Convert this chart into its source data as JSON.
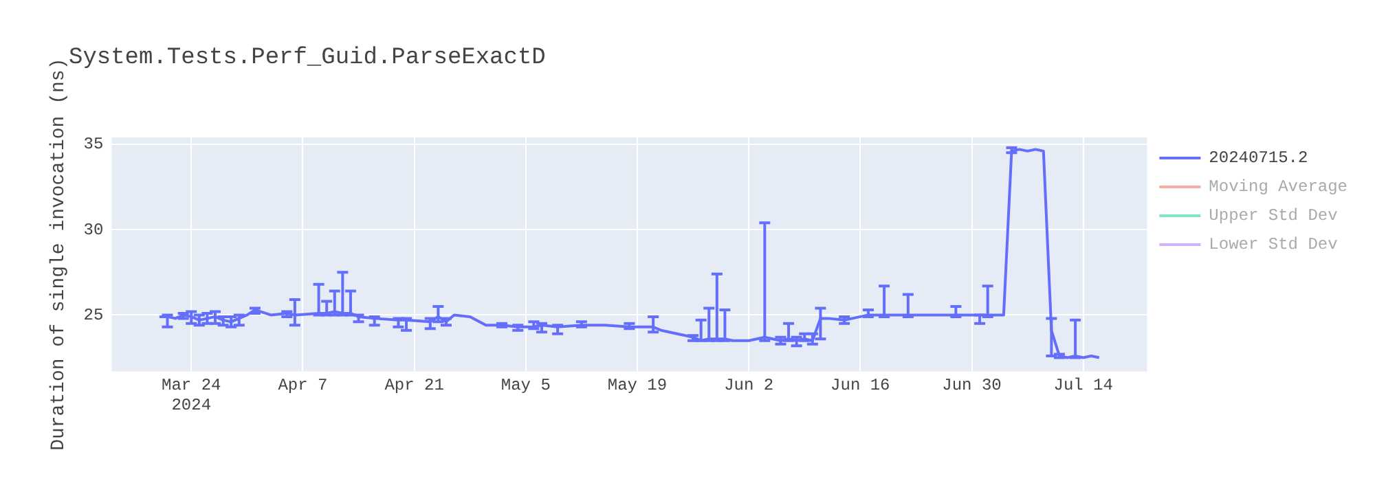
{
  "chart_data": {
    "type": "line",
    "title": "System.Tests.Perf_Guid.ParseExactD",
    "ylabel": "Duration of single invocation (ns)",
    "x": [
      "2024-03-20",
      "2024-03-21",
      "2024-03-22",
      "2024-03-23",
      "2024-03-24",
      "2024-03-25",
      "2024-03-26",
      "2024-03-27",
      "2024-03-28",
      "2024-03-29",
      "2024-03-30",
      "2024-03-31",
      "2024-04-01",
      "2024-04-03",
      "2024-04-05",
      "2024-04-06",
      "2024-04-09",
      "2024-04-10",
      "2024-04-11",
      "2024-04-12",
      "2024-04-13",
      "2024-04-14",
      "2024-04-16",
      "2024-04-19",
      "2024-04-20",
      "2024-04-23",
      "2024-04-24",
      "2024-04-25",
      "2024-04-26",
      "2024-04-28",
      "2024-04-30",
      "2024-05-02",
      "2024-05-04",
      "2024-05-06",
      "2024-05-07",
      "2024-05-09",
      "2024-05-12",
      "2024-05-15",
      "2024-05-18",
      "2024-05-21",
      "2024-05-22",
      "2024-05-24",
      "2024-05-26",
      "2024-05-27",
      "2024-05-28",
      "2024-05-29",
      "2024-05-30",
      "2024-05-31",
      "2024-06-02",
      "2024-06-03",
      "2024-06-04",
      "2024-06-05",
      "2024-06-06",
      "2024-06-07",
      "2024-06-08",
      "2024-06-09",
      "2024-06-10",
      "2024-06-11",
      "2024-06-12",
      "2024-06-14",
      "2024-06-16",
      "2024-06-17",
      "2024-06-18",
      "2024-06-19",
      "2024-06-21",
      "2024-06-22",
      "2024-06-25",
      "2024-06-26",
      "2024-06-28",
      "2024-06-30",
      "2024-07-01",
      "2024-07-02",
      "2024-07-03",
      "2024-07-04",
      "2024-07-05",
      "2024-07-06",
      "2024-07-07",
      "2024-07-08",
      "2024-07-09",
      "2024-07-10",
      "2024-07-11",
      "2024-07-12",
      "2024-07-13",
      "2024-07-14",
      "2024-07-15",
      "2024-07-16"
    ],
    "series": [
      {
        "name": "20240715.2",
        "color": "#636efa",
        "values": [
          24.9,
          24.9,
          24.8,
          25.0,
          24.9,
          24.7,
          24.8,
          24.9,
          24.7,
          24.6,
          24.8,
          25.0,
          25.3,
          25.0,
          25.1,
          25.0,
          25.1,
          25.1,
          25.2,
          25.1,
          25.1,
          24.9,
          24.8,
          24.7,
          24.7,
          24.6,
          24.9,
          24.6,
          25.0,
          24.9,
          24.4,
          24.4,
          24.3,
          24.3,
          24.4,
          24.3,
          24.4,
          24.4,
          24.3,
          24.3,
          24.1,
          23.9,
          23.7,
          23.5,
          23.6,
          23.6,
          23.6,
          23.5,
          23.5,
          23.6,
          23.7,
          23.6,
          23.5,
          23.6,
          23.5,
          23.6,
          23.5,
          24.8,
          24.8,
          24.7,
          24.9,
          25.0,
          25.0,
          25.0,
          25.0,
          25.0,
          25.0,
          25.0,
          25.0,
          25.0,
          25.0,
          25.0,
          25.0,
          25.0,
          34.6,
          34.7,
          34.6,
          34.7,
          34.6,
          24.1,
          22.6,
          22.5,
          22.6,
          22.5,
          22.6,
          22.5
        ],
        "errors": [
          null,
          [
            24.3,
            25.0
          ],
          null,
          [
            24.8,
            25.1
          ],
          [
            24.5,
            25.2
          ],
          [
            24.4,
            25.0
          ],
          [
            24.5,
            25.1
          ],
          [
            24.5,
            25.2
          ],
          [
            24.4,
            24.9
          ],
          [
            24.3,
            24.9
          ],
          [
            24.4,
            25.0
          ],
          null,
          [
            25.1,
            25.4
          ],
          null,
          [
            24.9,
            25.2
          ],
          [
            24.4,
            25.9
          ],
          [
            25.0,
            26.8
          ],
          [
            25.0,
            25.8
          ],
          [
            25.0,
            26.4
          ],
          [
            25.0,
            27.5
          ],
          [
            25.0,
            26.4
          ],
          [
            24.6,
            25.0
          ],
          [
            24.4,
            24.9
          ],
          [
            24.3,
            24.8
          ],
          [
            24.1,
            24.8
          ],
          [
            24.2,
            24.8
          ],
          [
            24.6,
            25.5
          ],
          [
            24.4,
            24.8
          ],
          null,
          null,
          null,
          [
            24.3,
            24.5
          ],
          [
            24.1,
            24.4
          ],
          [
            24.2,
            24.6
          ],
          [
            24.0,
            24.5
          ],
          [
            23.9,
            24.4
          ],
          [
            24.3,
            24.6
          ],
          null,
          [
            24.2,
            24.5
          ],
          [
            24.0,
            24.9
          ],
          null,
          null,
          [
            23.5,
            23.8
          ],
          [
            23.5,
            24.7
          ],
          [
            23.5,
            25.4
          ],
          [
            23.5,
            27.4
          ],
          [
            23.5,
            25.3
          ],
          null,
          null,
          null,
          [
            23.5,
            30.4
          ],
          null,
          [
            23.3,
            23.7
          ],
          [
            23.5,
            24.5
          ],
          [
            23.2,
            23.7
          ],
          [
            23.5,
            23.9
          ],
          [
            23.3,
            23.9
          ],
          [
            23.6,
            25.4
          ],
          null,
          [
            24.5,
            24.9
          ],
          null,
          [
            24.9,
            25.3
          ],
          null,
          [
            24.9,
            26.7
          ],
          null,
          [
            24.9,
            26.2
          ],
          null,
          null,
          [
            24.9,
            25.5
          ],
          null,
          [
            24.5,
            25.0
          ],
          [
            24.9,
            26.7
          ],
          null,
          null,
          [
            34.5,
            34.8
          ],
          null,
          null,
          null,
          null,
          [
            22.6,
            24.8
          ],
          [
            22.5,
            22.7
          ],
          null,
          [
            22.5,
            24.7
          ],
          null,
          null,
          null
        ]
      },
      {
        "name": "Moving Average",
        "color": "#ef553b",
        "values": [
          null,
          null,
          null,
          null,
          null,
          null,
          null,
          null,
          null,
          null,
          null,
          null,
          null,
          null,
          null,
          null,
          null,
          null,
          null,
          null,
          null,
          null,
          null,
          null,
          null,
          null,
          null,
          null,
          null,
          null,
          null,
          null,
          null,
          null,
          null,
          null,
          null,
          null,
          null,
          null,
          null,
          null,
          null,
          null,
          null,
          null,
          null,
          null,
          null,
          null,
          null,
          null,
          null,
          null,
          null,
          null,
          null,
          null,
          null,
          null,
          null,
          null,
          null,
          null,
          null,
          null,
          null,
          null,
          null,
          null,
          null,
          null,
          null,
          null,
          null,
          null,
          null,
          null,
          null,
          null,
          null,
          null,
          null,
          null,
          null,
          null
        ]
      },
      {
        "name": "Upper Std Dev",
        "color": "#00cc96",
        "values": [
          null,
          null,
          null,
          null,
          null,
          null,
          null,
          null,
          null,
          null,
          null,
          null,
          null,
          null,
          null,
          null,
          null,
          null,
          null,
          null,
          null,
          null,
          null,
          null,
          null,
          null,
          null,
          null,
          null,
          null,
          null,
          null,
          null,
          null,
          null,
          null,
          null,
          null,
          null,
          null,
          null,
          null,
          null,
          null,
          null,
          null,
          null,
          null,
          null,
          null,
          null,
          null,
          null,
          null,
          null,
          null,
          null,
          null,
          null,
          null,
          null,
          null,
          null,
          null,
          null,
          null,
          null,
          null,
          null,
          null,
          null,
          null,
          null,
          null,
          null,
          null,
          null,
          null,
          null,
          null,
          null,
          null,
          null,
          null,
          null,
          null
        ]
      },
      {
        "name": "Lower Std Dev",
        "color": "#ab63fa",
        "values": [
          null,
          null,
          null,
          null,
          null,
          null,
          null,
          null,
          null,
          null,
          null,
          null,
          null,
          null,
          null,
          null,
          null,
          null,
          null,
          null,
          null,
          null,
          null,
          null,
          null,
          null,
          null,
          null,
          null,
          null,
          null,
          null,
          null,
          null,
          null,
          null,
          null,
          null,
          null,
          null,
          null,
          null,
          null,
          null,
          null,
          null,
          null,
          null,
          null,
          null,
          null,
          null,
          null,
          null,
          null,
          null,
          null,
          null,
          null,
          null,
          null,
          null,
          null,
          null,
          null,
          null,
          null,
          null,
          null,
          null,
          null,
          null,
          null,
          null,
          null,
          null,
          null,
          null,
          null,
          null,
          null,
          null,
          null,
          null,
          null,
          null
        ]
      }
    ],
    "xlim": [
      "2024-03-14",
      "2024-07-22"
    ],
    "xticks": [
      {
        "value": "2024-03-24",
        "label": "Mar 24\n2024"
      },
      {
        "value": "2024-04-07",
        "label": "Apr 7"
      },
      {
        "value": "2024-04-21",
        "label": "Apr 21"
      },
      {
        "value": "2024-05-05",
        "label": "May 5"
      },
      {
        "value": "2024-05-19",
        "label": "May 19"
      },
      {
        "value": "2024-06-02",
        "label": "Jun 2"
      },
      {
        "value": "2024-06-16",
        "label": "Jun 16"
      },
      {
        "value": "2024-06-30",
        "label": "Jun 30"
      },
      {
        "value": "2024-07-14",
        "label": "Jul 14"
      }
    ],
    "ylim": [
      21.7,
      35.4
    ],
    "yticks": [
      25,
      30,
      35
    ],
    "grid": true,
    "legend": "top right",
    "marker": "none",
    "line_style": "solid"
  }
}
